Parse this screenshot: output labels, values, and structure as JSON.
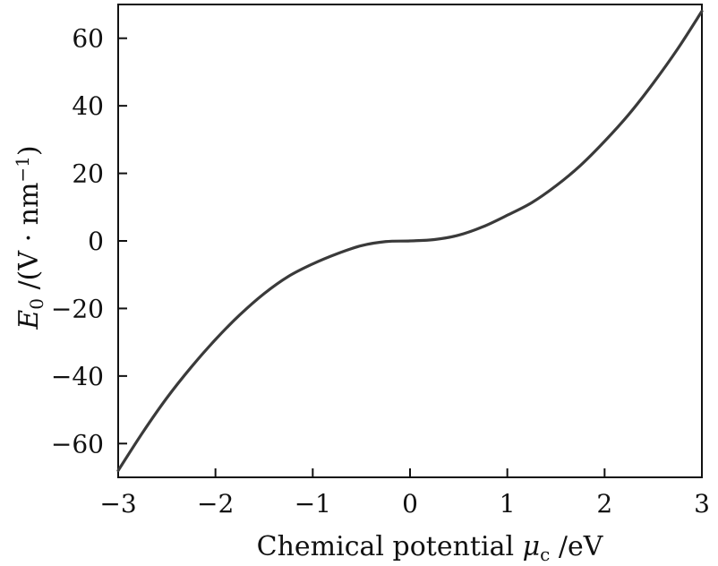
{
  "chart_data": {
    "type": "line",
    "title": "",
    "xlabel": "Chemical potential μc /eV",
    "ylabel": "E0 /(V·nm⁻¹)",
    "xlim": [
      -3,
      3
    ],
    "ylim": [
      -70,
      70
    ],
    "xticks": [
      -3,
      -2,
      -1,
      0,
      1,
      2,
      3
    ],
    "yticks": [
      -60,
      -40,
      -20,
      0,
      20,
      40,
      60
    ],
    "xtick_labels": [
      "−3",
      "−2",
      "−1",
      "0",
      "1",
      "2",
      "3"
    ],
    "ytick_labels": [
      "−60",
      "−40",
      "−20",
      "0",
      "20",
      "40",
      "60"
    ],
    "grid": false,
    "legend": "none",
    "line_color": "#3a3a3a",
    "series": [
      {
        "x": [
          -3,
          -2.75,
          -2.5,
          -2.25,
          -2,
          -1.75,
          -1.5,
          -1.25,
          -1,
          -0.75,
          -0.5,
          -0.25,
          0,
          0.25,
          0.5,
          0.75,
          1,
          1.25,
          1.5,
          1.75,
          2,
          2.25,
          2.5,
          2.75,
          3
        ],
        "y": [
          -68,
          -56.8,
          -46.5,
          -37.4,
          -29.2,
          -21.9,
          -15.6,
          -10.5,
          -6.8,
          -3.8,
          -1.4,
          -0.2,
          0,
          0.4,
          1.7,
          4.2,
          7.6,
          11.3,
          16.3,
          22.3,
          29.5,
          37.5,
          46.7,
          56.8,
          68
        ]
      }
    ],
    "axis_labels": {
      "x_main": "Chemical potential ",
      "x_symbol": "μ",
      "x_sub": "c",
      "x_unit": " /eV",
      "y_symbol": "E",
      "y_sub": "0",
      "y_unit": " /(V · nm",
      "y_sup": "−1",
      "y_close": ")"
    }
  }
}
